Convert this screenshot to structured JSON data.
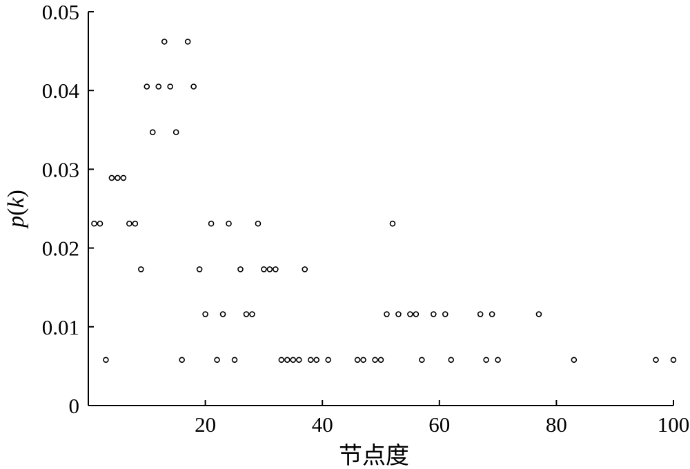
{
  "chart_data": {
    "type": "scatter",
    "title": "",
    "xlabel": "节点度",
    "ylabel": "p(k)",
    "ylabel_parts": {
      "p": "p",
      "open": "(",
      "k": "k",
      "close": ")"
    },
    "xlim": [
      0,
      100
    ],
    "ylim": [
      0,
      0.05
    ],
    "xticks": [
      20,
      40,
      60,
      80,
      100
    ],
    "xtick_labels": [
      "20",
      "40",
      "60",
      "80",
      "100"
    ],
    "yticks": [
      0,
      0.01,
      0.02,
      0.03,
      0.04,
      0.05
    ],
    "ytick_labels": [
      "0",
      "0.01",
      "0.02",
      "0.03",
      "0.04",
      "0.05"
    ],
    "grid": false,
    "marker": "open-circle",
    "color": "#000000",
    "points": [
      {
        "x": 1,
        "y": 0.0231
      },
      {
        "x": 2,
        "y": 0.0231
      },
      {
        "x": 3,
        "y": 0.0058
      },
      {
        "x": 4,
        "y": 0.0289
      },
      {
        "x": 5,
        "y": 0.0289
      },
      {
        "x": 6,
        "y": 0.0289
      },
      {
        "x": 7,
        "y": 0.0231
      },
      {
        "x": 8,
        "y": 0.0231
      },
      {
        "x": 9,
        "y": 0.0173
      },
      {
        "x": 10,
        "y": 0.0405
      },
      {
        "x": 11,
        "y": 0.0347
      },
      {
        "x": 12,
        "y": 0.0405
      },
      {
        "x": 13,
        "y": 0.0462
      },
      {
        "x": 14,
        "y": 0.0405
      },
      {
        "x": 15,
        "y": 0.0347
      },
      {
        "x": 16,
        "y": 0.0058
      },
      {
        "x": 17,
        "y": 0.0462
      },
      {
        "x": 18,
        "y": 0.0405
      },
      {
        "x": 19,
        "y": 0.0173
      },
      {
        "x": 20,
        "y": 0.0116
      },
      {
        "x": 21,
        "y": 0.0231
      },
      {
        "x": 22,
        "y": 0.0058
      },
      {
        "x": 23,
        "y": 0.0116
      },
      {
        "x": 24,
        "y": 0.0231
      },
      {
        "x": 25,
        "y": 0.0058
      },
      {
        "x": 26,
        "y": 0.0173
      },
      {
        "x": 27,
        "y": 0.0116
      },
      {
        "x": 28,
        "y": 0.0116
      },
      {
        "x": 29,
        "y": 0.0231
      },
      {
        "x": 30,
        "y": 0.0173
      },
      {
        "x": 31,
        "y": 0.0173
      },
      {
        "x": 32,
        "y": 0.0173
      },
      {
        "x": 33,
        "y": 0.0058
      },
      {
        "x": 34,
        "y": 0.0058
      },
      {
        "x": 35,
        "y": 0.0058
      },
      {
        "x": 36,
        "y": 0.0058
      },
      {
        "x": 37,
        "y": 0.0173
      },
      {
        "x": 38,
        "y": 0.0058
      },
      {
        "x": 39,
        "y": 0.0058
      },
      {
        "x": 41,
        "y": 0.0058
      },
      {
        "x": 46,
        "y": 0.0058
      },
      {
        "x": 47,
        "y": 0.0058
      },
      {
        "x": 49,
        "y": 0.0058
      },
      {
        "x": 50,
        "y": 0.0058
      },
      {
        "x": 51,
        "y": 0.0116
      },
      {
        "x": 52,
        "y": 0.0231
      },
      {
        "x": 53,
        "y": 0.0116
      },
      {
        "x": 55,
        "y": 0.0116
      },
      {
        "x": 56,
        "y": 0.0116
      },
      {
        "x": 57,
        "y": 0.0058
      },
      {
        "x": 59,
        "y": 0.0116
      },
      {
        "x": 61,
        "y": 0.0116
      },
      {
        "x": 62,
        "y": 0.0058
      },
      {
        "x": 67,
        "y": 0.0116
      },
      {
        "x": 68,
        "y": 0.0058
      },
      {
        "x": 69,
        "y": 0.0116
      },
      {
        "x": 70,
        "y": 0.0058
      },
      {
        "x": 77,
        "y": 0.0116
      },
      {
        "x": 83,
        "y": 0.0058
      },
      {
        "x": 97,
        "y": 0.0058
      },
      {
        "x": 100,
        "y": 0.0058
      }
    ]
  }
}
